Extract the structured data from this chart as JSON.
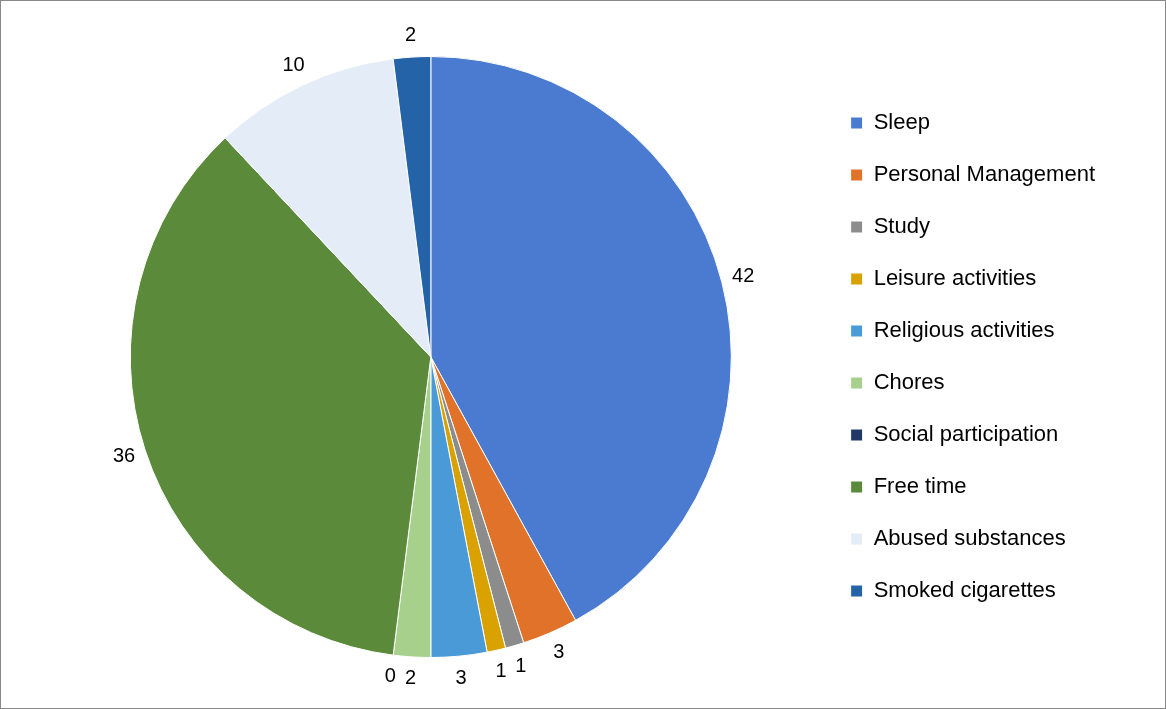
{
  "chart_data": {
    "type": "pie",
    "categories": [
      "Sleep",
      "Personal Management",
      "Study",
      "Leisure activities",
      "Religious activities",
      "Chores",
      "Social participation",
      "Free time",
      "Abused substances",
      "Smoked cigarettes"
    ],
    "values": [
      42,
      3,
      1,
      1,
      3,
      2,
      0,
      36,
      10,
      2
    ],
    "colors": [
      "#4a7bd0",
      "#e0722a",
      "#8c8c8c",
      "#d9a200",
      "#4a9ad8",
      "#a8d08d",
      "#1f3864",
      "#5a8a3a",
      "#e4ecf7",
      "#2563a8"
    ],
    "value_labels": [
      "42",
      "3",
      "1",
      "1",
      "3",
      "2",
      "0",
      "36",
      "10",
      "2"
    ],
    "legend": "right"
  }
}
